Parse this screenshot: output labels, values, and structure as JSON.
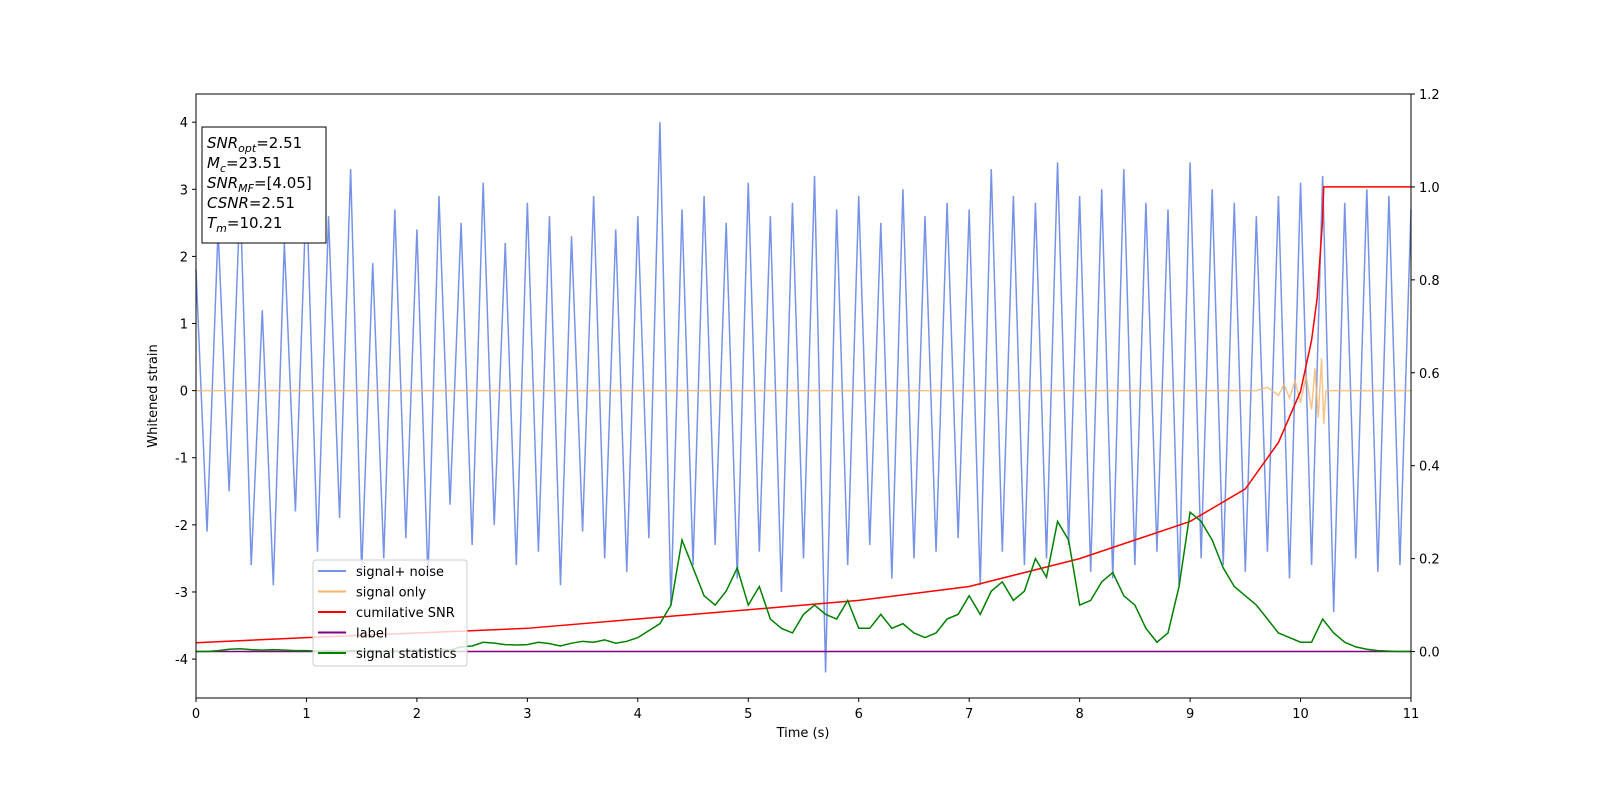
{
  "chart_data": {
    "type": "line",
    "xlabel": "Time (s)",
    "ylabel": "Whitened strain",
    "xlim": [
      0,
      11
    ],
    "ylim": [
      -4.58,
      4.42
    ],
    "y2lim": [
      -0.1,
      1.2
    ],
    "xticks": [
      0,
      1,
      2,
      3,
      4,
      5,
      6,
      7,
      8,
      9,
      10,
      11
    ],
    "yticks": [
      -4,
      -3,
      -2,
      -1,
      0,
      1,
      2,
      3,
      4
    ],
    "y2ticks": [
      {
        "value": 0,
        "label": "0.0"
      },
      {
        "value": 0.2,
        "label": "0.2"
      },
      {
        "value": 0.4,
        "label": "0.4"
      },
      {
        "value": 0.6,
        "label": "0.6"
      },
      {
        "value": 0.8,
        "label": "0.8"
      },
      {
        "value": 1,
        "label": "1.0"
      },
      {
        "value": 1.2,
        "label": "1.2"
      }
    ],
    "legend": "lower left",
    "annotations": [
      {
        "text": "SNR",
        "sub": "opt",
        "rest": "=2.51"
      },
      {
        "text": "M",
        "sub": "c",
        "rest": "=23.51"
      },
      {
        "text": "SNR",
        "sub": "MF",
        "rest": "=[4.05]"
      },
      {
        "text": "CSNR",
        "rest": "=2.51"
      },
      {
        "text": "T",
        "sub": "m",
        "rest": "=10.21"
      }
    ],
    "x": [
      0,
      0.1,
      0.2,
      0.3,
      0.4,
      0.5,
      0.6,
      0.7,
      0.8,
      0.9,
      1,
      1.1,
      1.2,
      1.3,
      1.4,
      1.5,
      1.6,
      1.7,
      1.8,
      1.9,
      2,
      2.1,
      2.2,
      2.3,
      2.4,
      2.5,
      2.6,
      2.7,
      2.8,
      2.9,
      3,
      3.1,
      3.2,
      3.3,
      3.4,
      3.5,
      3.6,
      3.7,
      3.8,
      3.9,
      4,
      4.1,
      4.2,
      4.3,
      4.4,
      4.5,
      4.6,
      4.7,
      4.8,
      4.9,
      5,
      5.1,
      5.2,
      5.3,
      5.4,
      5.5,
      5.6,
      5.7,
      5.8,
      5.9,
      6,
      6.1,
      6.2,
      6.3,
      6.4,
      6.5,
      6.6,
      6.7,
      6.8,
      6.9,
      7,
      7.1,
      7.2,
      7.3,
      7.4,
      7.5,
      7.6,
      7.7,
      7.8,
      7.9,
      8,
      8.1,
      8.2,
      8.3,
      8.4,
      8.5,
      8.6,
      8.7,
      8.8,
      8.9,
      9,
      9.1,
      9.2,
      9.3,
      9.4,
      9.5,
      9.6,
      9.7,
      9.8,
      9.9,
      10,
      10.1,
      10.2,
      10.3,
      10.4,
      10.5,
      10.6,
      10.7,
      10.8,
      10.9,
      11
    ],
    "series": [
      {
        "name": "signal+ noise",
        "color": "#7793e8",
        "axis": "y",
        "values": [
          1.8,
          -2.1,
          2.4,
          -1.5,
          2.9,
          -2.6,
          1.2,
          -2.9,
          2.2,
          -1.8,
          3.0,
          -2.4,
          2.6,
          -1.9,
          3.3,
          -2.7,
          1.9,
          -2.5,
          2.7,
          -2.2,
          2.4,
          -2.8,
          2.9,
          -1.7,
          2.5,
          -2.3,
          3.1,
          -2.0,
          2.2,
          -2.6,
          2.8,
          -2.4,
          2.6,
          -2.9,
          2.3,
          -2.1,
          2.9,
          -2.5,
          2.4,
          -2.7,
          2.6,
          -2.2,
          4.0,
          -3.2,
          2.7,
          -2.6,
          2.9,
          -2.3,
          2.5,
          -2.8,
          3.1,
          -2.4,
          2.6,
          -3.0,
          2.8,
          -2.5,
          3.2,
          -4.2,
          2.7,
          -2.6,
          2.9,
          -2.3,
          2.5,
          -2.8,
          3.0,
          -2.5,
          2.6,
          -2.4,
          2.8,
          -2.2,
          2.7,
          -2.9,
          3.3,
          -2.4,
          2.9,
          -2.6,
          2.8,
          -2.5,
          3.4,
          -2.3,
          2.9,
          -2.7,
          3.0,
          -2.8,
          3.3,
          -2.6,
          2.8,
          -2.4,
          2.7,
          -2.9,
          3.4,
          -2.5,
          3.0,
          -2.6,
          2.8,
          -2.7,
          2.6,
          -2.4,
          2.9,
          -2.8,
          3.1,
          -2.6,
          3.2,
          -3.3,
          2.8,
          -2.5,
          3.0,
          -2.7,
          2.9,
          -2.6,
          2.7
        ]
      },
      {
        "name": "signal only",
        "color": "#f2b56b",
        "axis": "y",
        "x": [
          0,
          9.6,
          9.7,
          9.8,
          9.85,
          9.9,
          9.95,
          10.0,
          10.05,
          10.1,
          10.13,
          10.16,
          10.19,
          10.21,
          10.23,
          11
        ],
        "values": [
          0,
          0,
          0.05,
          -0.07,
          0.09,
          -0.11,
          0.14,
          -0.18,
          0.22,
          -0.28,
          0.33,
          -0.4,
          0.48,
          -0.5,
          0,
          0
        ]
      },
      {
        "name": "cumilative SNR",
        "color": "#ff0000",
        "axis": "y2",
        "x": [
          0,
          1,
          2,
          3,
          4,
          5,
          6,
          7,
          8,
          9,
          9.5,
          9.8,
          10,
          10.1,
          10.15,
          10.2,
          10.21,
          11
        ],
        "values": [
          0.019,
          0.03,
          0.04,
          0.05,
          0.07,
          0.09,
          0.11,
          0.14,
          0.2,
          0.28,
          0.35,
          0.45,
          0.56,
          0.67,
          0.76,
          0.93,
          1.0,
          1.0
        ]
      },
      {
        "name": "label",
        "color": "#800080",
        "axis": "y2",
        "x": [
          0,
          11
        ],
        "values": [
          0,
          0
        ]
      },
      {
        "name": "signal statistics",
        "color": "#008000",
        "axis": "y2",
        "values": [
          0.0,
          0.0,
          0.002,
          0.005,
          0.006,
          0.004,
          0.003,
          0.004,
          0.003,
          0.002,
          0.002,
          0.001,
          0.002,
          0.001,
          0.002,
          0.001,
          0.002,
          0.001,
          0.001,
          0.002,
          0.003,
          0.002,
          0.004,
          0.003,
          0.01,
          0.012,
          0.02,
          0.018,
          0.015,
          0.014,
          0.015,
          0.02,
          0.017,
          0.012,
          0.018,
          0.022,
          0.02,
          0.025,
          0.018,
          0.022,
          0.03,
          0.045,
          0.06,
          0.1,
          0.24,
          0.18,
          0.12,
          0.1,
          0.13,
          0.18,
          0.1,
          0.14,
          0.07,
          0.05,
          0.04,
          0.08,
          0.1,
          0.08,
          0.07,
          0.11,
          0.05,
          0.05,
          0.08,
          0.05,
          0.06,
          0.04,
          0.03,
          0.04,
          0.07,
          0.08,
          0.12,
          0.08,
          0.13,
          0.15,
          0.11,
          0.13,
          0.2,
          0.16,
          0.28,
          0.24,
          0.1,
          0.11,
          0.15,
          0.17,
          0.12,
          0.1,
          0.05,
          0.02,
          0.04,
          0.14,
          0.3,
          0.28,
          0.24,
          0.18,
          0.14,
          0.12,
          0.1,
          0.07,
          0.04,
          0.03,
          0.02,
          0.02,
          0.07,
          0.04,
          0.02,
          0.01,
          0.005,
          0.002,
          0.001,
          0.0,
          0.0
        ]
      }
    ]
  }
}
